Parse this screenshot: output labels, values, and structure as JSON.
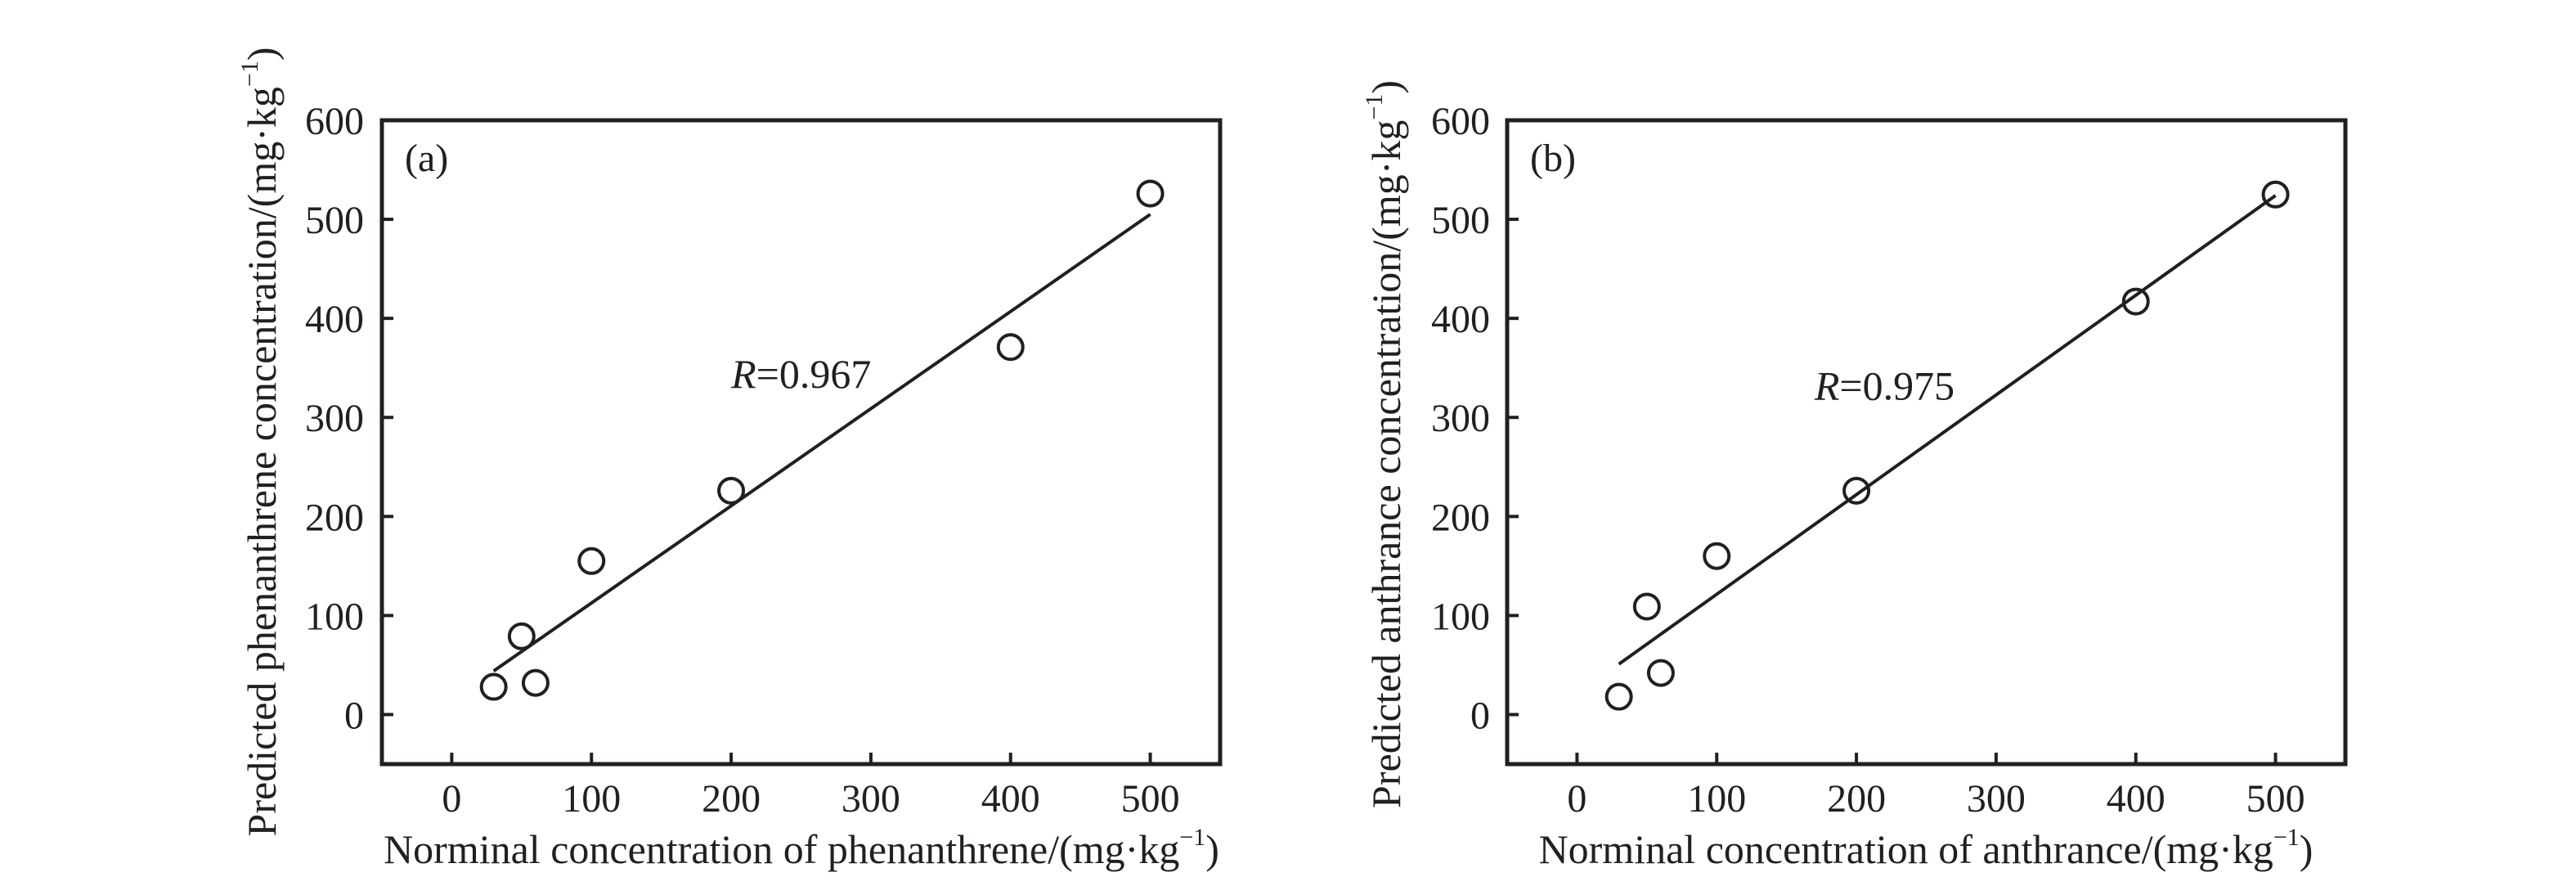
{
  "chart_data": [
    {
      "type": "scatter",
      "panel_label": "(a)",
      "xlabel": "Norminal concentration of phenanthrene/(mg·kg",
      "xlabel_sup": "−1",
      "xlabel_close": ")",
      "ylabel": "Predicted phenanthrene concentration/(mg·kg",
      "ylabel_sup": "−1",
      "ylabel_close": ")",
      "xlim": [
        -50,
        550
      ],
      "ylim": [
        -50,
        600
      ],
      "xticks": [
        0,
        100,
        200,
        300,
        400,
        500
      ],
      "yticks": [
        0,
        100,
        200,
        300,
        400,
        500,
        600
      ],
      "xtick_labels": [
        "0",
        "100",
        "200",
        "300",
        "400",
        "500"
      ],
      "ytick_labels": [
        "0",
        "100",
        "200",
        "300",
        "400",
        "500",
        "600"
      ],
      "grid": false,
      "series": [
        {
          "name": "data",
          "marker": "open-circle",
          "x": [
            30,
            50,
            60,
            100,
            200,
            400,
            500
          ],
          "y": [
            28,
            79,
            32,
            155,
            226,
            371,
            526
          ]
        }
      ],
      "fit_line": {
        "x": [
          30,
          500
        ],
        "y": [
          44,
          505
        ]
      },
      "annotation": {
        "italic": "R",
        "text": "=0.967",
        "x": 200,
        "y": 330
      }
    },
    {
      "type": "scatter",
      "panel_label": "(b)",
      "xlabel": "Norminal concentration of anthrance/(mg·kg",
      "xlabel_sup": "−1",
      "xlabel_close": ")",
      "ylabel": "Predicted anthrance concentration/(mg·kg",
      "ylabel_sup": "−1",
      "ylabel_close": ")",
      "xlim": [
        -50,
        550
      ],
      "ylim": [
        -50,
        600
      ],
      "xticks": [
        0,
        100,
        200,
        300,
        400,
        500
      ],
      "yticks": [
        0,
        100,
        200,
        300,
        400,
        500,
        600
      ],
      "xtick_labels": [
        "0",
        "100",
        "200",
        "300",
        "400",
        "500"
      ],
      "ytick_labels": [
        "0",
        "100",
        "200",
        "300",
        "400",
        "500",
        "600"
      ],
      "grid": false,
      "series": [
        {
          "name": "data",
          "marker": "open-circle",
          "x": [
            30,
            50,
            60,
            100,
            200,
            400,
            500
          ],
          "y": [
            18,
            109,
            42,
            160,
            226,
            417,
            525
          ]
        }
      ],
      "fit_line": {
        "x": [
          30,
          500
        ],
        "y": [
          51,
          524
        ]
      },
      "annotation": {
        "italic": "R",
        "text": "=0.975",
        "x": 170,
        "y": 318
      }
    }
  ],
  "colors": {
    "ink": "#231f20",
    "background": "#ffffff"
  }
}
